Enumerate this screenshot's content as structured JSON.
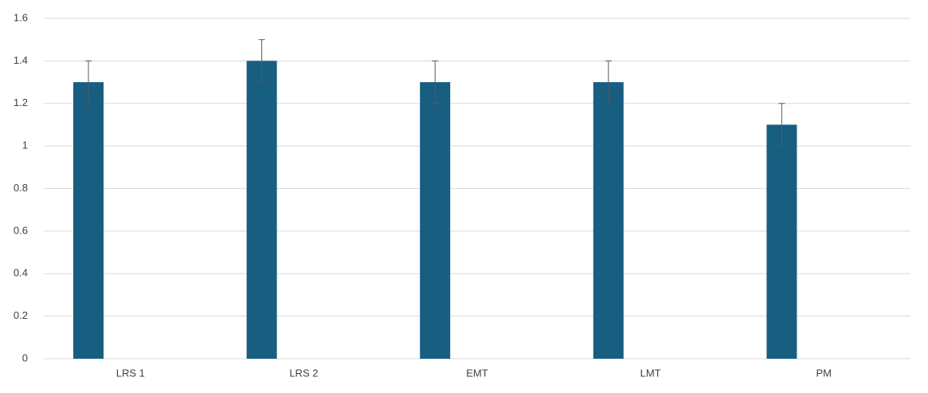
{
  "chart_data": {
    "type": "bar",
    "categories": [
      "LRS 1",
      "LRS 2",
      "EMT",
      "LMT",
      "PM"
    ],
    "values": [
      1.3,
      1.4,
      1.3,
      1.3,
      1.1
    ],
    "errors": [
      0.1,
      0.1,
      0.1,
      0.1,
      0.1
    ],
    "color": "#175e81",
    "ylim": [
      0,
      1.6
    ],
    "yticks": [
      0,
      0.2,
      0.4,
      0.6,
      0.8,
      1,
      1.2,
      1.4,
      1.6
    ],
    "grid": true
  }
}
